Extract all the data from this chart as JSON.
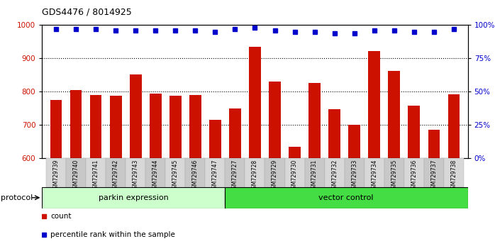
{
  "title": "GDS4476 / 8014925",
  "samples": [
    "GSM729739",
    "GSM729740",
    "GSM729741",
    "GSM729742",
    "GSM729743",
    "GSM729744",
    "GSM729745",
    "GSM729746",
    "GSM729747",
    "GSM729727",
    "GSM729728",
    "GSM729729",
    "GSM729730",
    "GSM729731",
    "GSM729732",
    "GSM729733",
    "GSM729734",
    "GSM729735",
    "GSM729736",
    "GSM729737",
    "GSM729738"
  ],
  "counts": [
    775,
    805,
    790,
    788,
    852,
    793,
    788,
    790,
    715,
    750,
    935,
    830,
    635,
    826,
    748,
    700,
    922,
    862,
    757,
    686,
    792
  ],
  "percentile_ranks": [
    97,
    97,
    97,
    96,
    96,
    96,
    96,
    96,
    95,
    97,
    98,
    96,
    95,
    95,
    94,
    94,
    96,
    96,
    95,
    95,
    97
  ],
  "parkin_count": 9,
  "vector_count": 12,
  "ylim_left": [
    600,
    1000
  ],
  "ylim_right": [
    0,
    100
  ],
  "yticks_left": [
    600,
    700,
    800,
    900,
    1000
  ],
  "yticks_right": [
    0,
    25,
    50,
    75,
    100
  ],
  "bar_color": "#cc1100",
  "dot_color": "#0000cc",
  "parkin_bg": "#ccffcc",
  "vector_bg": "#44dd44",
  "parkin_label": "parkin expression",
  "vector_label": "vector control",
  "protocol_label": "protocol",
  "legend_count": "count",
  "legend_pct": "percentile rank within the sample",
  "xlabel_color": "#cc1100",
  "ylabel_right_color": "#0000cc",
  "bar_width": 0.6,
  "fig_width": 6.98,
  "fig_height": 3.54,
  "dpi": 100
}
